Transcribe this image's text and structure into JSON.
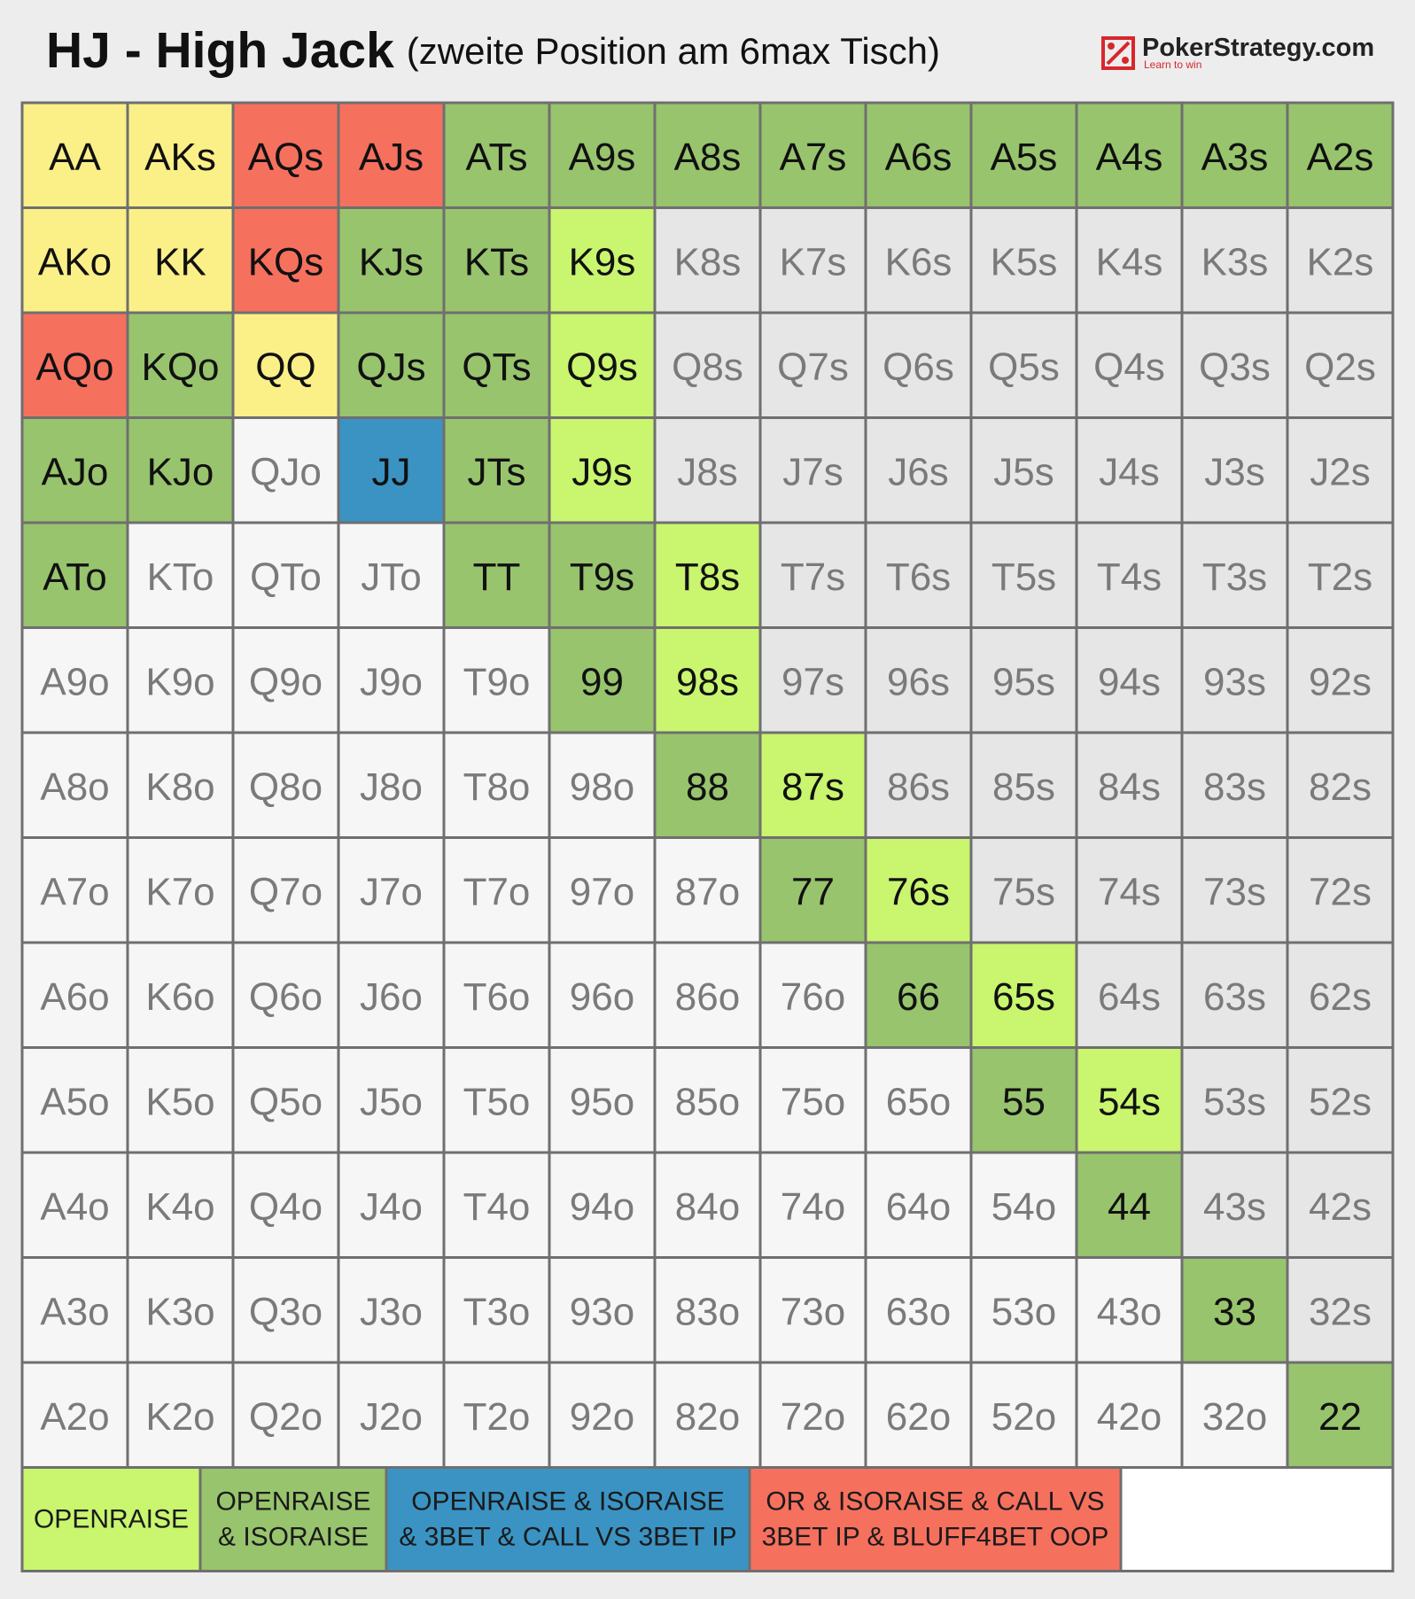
{
  "header": {
    "title": "HJ - High Jack",
    "subtitle": "(zweite Position am 6max Tisch)",
    "logo": {
      "brand": "PokerStrategy.com",
      "tagline": "Learn to win"
    }
  },
  "grid": {
    "rows": [
      [
        {
          "label": "AA",
          "color": "#fbf088"
        },
        {
          "label": "AKs",
          "color": "#fbf088"
        },
        {
          "label": "AQs",
          "color": "#f6705e"
        },
        {
          "label": "AJs",
          "color": "#f6705e"
        },
        {
          "label": "ATs",
          "color": "#98c46d"
        },
        {
          "label": "A9s",
          "color": "#98c46d"
        },
        {
          "label": "A8s",
          "color": "#98c46d"
        },
        {
          "label": "A7s",
          "color": "#98c46d"
        },
        {
          "label": "A6s",
          "color": "#98c46d"
        },
        {
          "label": "A5s",
          "color": "#98c46d"
        },
        {
          "label": "A4s",
          "color": "#98c46d"
        },
        {
          "label": "A3s",
          "color": "#98c46d"
        },
        {
          "label": "A2s",
          "color": "#98c46d"
        }
      ],
      [
        {
          "label": "AKo",
          "color": "#fbf088"
        },
        {
          "label": "KK",
          "color": "#fbf088"
        },
        {
          "label": "KQs",
          "color": "#f6705e"
        },
        {
          "label": "KJs",
          "color": "#98c46d"
        },
        {
          "label": "KTs",
          "color": "#98c46d"
        },
        {
          "label": "K9s",
          "color": "#c9f56f"
        },
        {
          "label": "K8s",
          "color": "#e6e6e6"
        },
        {
          "label": "K7s",
          "color": "#e6e6e6"
        },
        {
          "label": "K6s",
          "color": "#e6e6e6"
        },
        {
          "label": "K5s",
          "color": "#e6e6e6"
        },
        {
          "label": "K4s",
          "color": "#e6e6e6"
        },
        {
          "label": "K3s",
          "color": "#e6e6e6"
        },
        {
          "label": "K2s",
          "color": "#e6e6e6"
        }
      ],
      [
        {
          "label": "AQo",
          "color": "#f6705e"
        },
        {
          "label": "KQo",
          "color": "#98c46d"
        },
        {
          "label": "QQ",
          "color": "#fbf088"
        },
        {
          "label": "QJs",
          "color": "#98c46d"
        },
        {
          "label": "QTs",
          "color": "#98c46d"
        },
        {
          "label": "Q9s",
          "color": "#c9f56f"
        },
        {
          "label": "Q8s",
          "color": "#e6e6e6"
        },
        {
          "label": "Q7s",
          "color": "#e6e6e6"
        },
        {
          "label": "Q6s",
          "color": "#e6e6e6"
        },
        {
          "label": "Q5s",
          "color": "#e6e6e6"
        },
        {
          "label": "Q4s",
          "color": "#e6e6e6"
        },
        {
          "label": "Q3s",
          "color": "#e6e6e6"
        },
        {
          "label": "Q2s",
          "color": "#e6e6e6"
        }
      ],
      [
        {
          "label": "AJo",
          "color": "#98c46d"
        },
        {
          "label": "KJo",
          "color": "#98c46d"
        },
        {
          "label": "QJo",
          "color": "#f6f6f6"
        },
        {
          "label": "JJ",
          "color": "#3a93c3"
        },
        {
          "label": "JTs",
          "color": "#98c46d"
        },
        {
          "label": "J9s",
          "color": "#c9f56f"
        },
        {
          "label": "J8s",
          "color": "#e6e6e6"
        },
        {
          "label": "J7s",
          "color": "#e6e6e6"
        },
        {
          "label": "J6s",
          "color": "#e6e6e6"
        },
        {
          "label": "J5s",
          "color": "#e6e6e6"
        },
        {
          "label": "J4s",
          "color": "#e6e6e6"
        },
        {
          "label": "J3s",
          "color": "#e6e6e6"
        },
        {
          "label": "J2s",
          "color": "#e6e6e6"
        }
      ],
      [
        {
          "label": "ATo",
          "color": "#98c46d"
        },
        {
          "label": "KTo",
          "color": "#f6f6f6"
        },
        {
          "label": "QTo",
          "color": "#f6f6f6"
        },
        {
          "label": "JTo",
          "color": "#f6f6f6"
        },
        {
          "label": "TT",
          "color": "#98c46d"
        },
        {
          "label": "T9s",
          "color": "#98c46d"
        },
        {
          "label": "T8s",
          "color": "#c9f56f"
        },
        {
          "label": "T7s",
          "color": "#e6e6e6"
        },
        {
          "label": "T6s",
          "color": "#e6e6e6"
        },
        {
          "label": "T5s",
          "color": "#e6e6e6"
        },
        {
          "label": "T4s",
          "color": "#e6e6e6"
        },
        {
          "label": "T3s",
          "color": "#e6e6e6"
        },
        {
          "label": "T2s",
          "color": "#e6e6e6"
        }
      ],
      [
        {
          "label": "A9o",
          "color": "#f6f6f6"
        },
        {
          "label": "K9o",
          "color": "#f6f6f6"
        },
        {
          "label": "Q9o",
          "color": "#f6f6f6"
        },
        {
          "label": "J9o",
          "color": "#f6f6f6"
        },
        {
          "label": "T9o",
          "color": "#f6f6f6"
        },
        {
          "label": "99",
          "color": "#98c46d"
        },
        {
          "label": "98s",
          "color": "#c9f56f"
        },
        {
          "label": "97s",
          "color": "#e6e6e6"
        },
        {
          "label": "96s",
          "color": "#e6e6e6"
        },
        {
          "label": "95s",
          "color": "#e6e6e6"
        },
        {
          "label": "94s",
          "color": "#e6e6e6"
        },
        {
          "label": "93s",
          "color": "#e6e6e6"
        },
        {
          "label": "92s",
          "color": "#e6e6e6"
        }
      ],
      [
        {
          "label": "A8o",
          "color": "#f6f6f6"
        },
        {
          "label": "K8o",
          "color": "#f6f6f6"
        },
        {
          "label": "Q8o",
          "color": "#f6f6f6"
        },
        {
          "label": "J8o",
          "color": "#f6f6f6"
        },
        {
          "label": "T8o",
          "color": "#f6f6f6"
        },
        {
          "label": "98o",
          "color": "#f6f6f6"
        },
        {
          "label": "88",
          "color": "#98c46d"
        },
        {
          "label": "87s",
          "color": "#c9f56f"
        },
        {
          "label": "86s",
          "color": "#e6e6e6"
        },
        {
          "label": "85s",
          "color": "#e6e6e6"
        },
        {
          "label": "84s",
          "color": "#e6e6e6"
        },
        {
          "label": "83s",
          "color": "#e6e6e6"
        },
        {
          "label": "82s",
          "color": "#e6e6e6"
        }
      ],
      [
        {
          "label": "A7o",
          "color": "#f6f6f6"
        },
        {
          "label": "K7o",
          "color": "#f6f6f6"
        },
        {
          "label": "Q7o",
          "color": "#f6f6f6"
        },
        {
          "label": "J7o",
          "color": "#f6f6f6"
        },
        {
          "label": "T7o",
          "color": "#f6f6f6"
        },
        {
          "label": "97o",
          "color": "#f6f6f6"
        },
        {
          "label": "87o",
          "color": "#f6f6f6"
        },
        {
          "label": "77",
          "color": "#98c46d"
        },
        {
          "label": "76s",
          "color": "#c9f56f"
        },
        {
          "label": "75s",
          "color": "#e6e6e6"
        },
        {
          "label": "74s",
          "color": "#e6e6e6"
        },
        {
          "label": "73s",
          "color": "#e6e6e6"
        },
        {
          "label": "72s",
          "color": "#e6e6e6"
        }
      ],
      [
        {
          "label": "A6o",
          "color": "#f6f6f6"
        },
        {
          "label": "K6o",
          "color": "#f6f6f6"
        },
        {
          "label": "Q6o",
          "color": "#f6f6f6"
        },
        {
          "label": "J6o",
          "color": "#f6f6f6"
        },
        {
          "label": "T6o",
          "color": "#f6f6f6"
        },
        {
          "label": "96o",
          "color": "#f6f6f6"
        },
        {
          "label": "86o",
          "color": "#f6f6f6"
        },
        {
          "label": "76o",
          "color": "#f6f6f6"
        },
        {
          "label": "66",
          "color": "#98c46d"
        },
        {
          "label": "65s",
          "color": "#c9f56f"
        },
        {
          "label": "64s",
          "color": "#e6e6e6"
        },
        {
          "label": "63s",
          "color": "#e6e6e6"
        },
        {
          "label": "62s",
          "color": "#e6e6e6"
        }
      ],
      [
        {
          "label": "A5o",
          "color": "#f6f6f6"
        },
        {
          "label": "K5o",
          "color": "#f6f6f6"
        },
        {
          "label": "Q5o",
          "color": "#f6f6f6"
        },
        {
          "label": "J5o",
          "color": "#f6f6f6"
        },
        {
          "label": "T5o",
          "color": "#f6f6f6"
        },
        {
          "label": "95o",
          "color": "#f6f6f6"
        },
        {
          "label": "85o",
          "color": "#f6f6f6"
        },
        {
          "label": "75o",
          "color": "#f6f6f6"
        },
        {
          "label": "65o",
          "color": "#f6f6f6"
        },
        {
          "label": "55",
          "color": "#98c46d"
        },
        {
          "label": "54s",
          "color": "#c9f56f"
        },
        {
          "label": "53s",
          "color": "#e6e6e6"
        },
        {
          "label": "52s",
          "color": "#e6e6e6"
        }
      ],
      [
        {
          "label": "A4o",
          "color": "#f6f6f6"
        },
        {
          "label": "K4o",
          "color": "#f6f6f6"
        },
        {
          "label": "Q4o",
          "color": "#f6f6f6"
        },
        {
          "label": "J4o",
          "color": "#f6f6f6"
        },
        {
          "label": "T4o",
          "color": "#f6f6f6"
        },
        {
          "label": "94o",
          "color": "#f6f6f6"
        },
        {
          "label": "84o",
          "color": "#f6f6f6"
        },
        {
          "label": "74o",
          "color": "#f6f6f6"
        },
        {
          "label": "64o",
          "color": "#f6f6f6"
        },
        {
          "label": "54o",
          "color": "#f6f6f6"
        },
        {
          "label": "44",
          "color": "#98c46d"
        },
        {
          "label": "43s",
          "color": "#e6e6e6"
        },
        {
          "label": "42s",
          "color": "#e6e6e6"
        }
      ],
      [
        {
          "label": "A3o",
          "color": "#f6f6f6"
        },
        {
          "label": "K3o",
          "color": "#f6f6f6"
        },
        {
          "label": "Q3o",
          "color": "#f6f6f6"
        },
        {
          "label": "J3o",
          "color": "#f6f6f6"
        },
        {
          "label": "T3o",
          "color": "#f6f6f6"
        },
        {
          "label": "93o",
          "color": "#f6f6f6"
        },
        {
          "label": "83o",
          "color": "#f6f6f6"
        },
        {
          "label": "73o",
          "color": "#f6f6f6"
        },
        {
          "label": "63o",
          "color": "#f6f6f6"
        },
        {
          "label": "53o",
          "color": "#f6f6f6"
        },
        {
          "label": "43o",
          "color": "#f6f6f6"
        },
        {
          "label": "33",
          "color": "#98c46d"
        },
        {
          "label": "32s",
          "color": "#e6e6e6"
        }
      ],
      [
        {
          "label": "A2o",
          "color": "#f6f6f6"
        },
        {
          "label": "K2o",
          "color": "#f6f6f6"
        },
        {
          "label": "Q2o",
          "color": "#f6f6f6"
        },
        {
          "label": "J2o",
          "color": "#f6f6f6"
        },
        {
          "label": "T2o",
          "color": "#f6f6f6"
        },
        {
          "label": "92o",
          "color": "#f6f6f6"
        },
        {
          "label": "82o",
          "color": "#f6f6f6"
        },
        {
          "label": "72o",
          "color": "#f6f6f6"
        },
        {
          "label": "62o",
          "color": "#f6f6f6"
        },
        {
          "label": "52o",
          "color": "#f6f6f6"
        },
        {
          "label": "42o",
          "color": "#f6f6f6"
        },
        {
          "label": "32o",
          "color": "#f6f6f6"
        },
        {
          "label": "22",
          "color": "#98c46d"
        }
      ]
    ]
  },
  "legend": [
    {
      "lines": [
        "OPENRAISE"
      ],
      "color": "#c9f56f"
    },
    {
      "lines": [
        "OPENRAISE",
        "& ISORAISE"
      ],
      "color": "#98c46d"
    },
    {
      "lines": [
        "OPENRAISE & ISORAISE",
        "& 3BET & CALL VS 3BET IP"
      ],
      "color": "#3a93c3"
    },
    {
      "lines": [
        "OR & ISORAISE & CALL VS",
        "3BET IP & BLUFF4BET OOP"
      ],
      "color": "#f6705e"
    }
  ]
}
